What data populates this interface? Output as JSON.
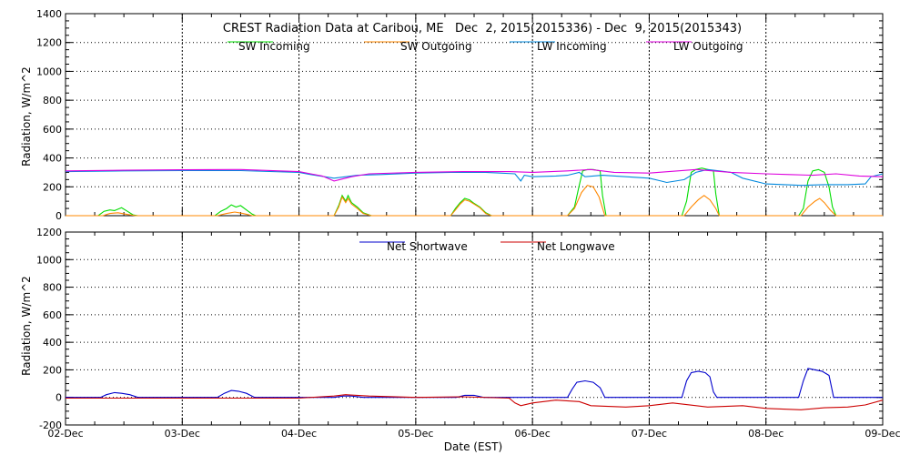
{
  "chart_data": [
    {
      "type": "line",
      "title": "CREST Radiation Data at Caribou, ME   Dec  2, 2015(2015336) - Dec  9, 2015(2015343)",
      "ylabel": "Radiation, W/m^2",
      "xlabel": "",
      "ylim": [
        0,
        1400
      ],
      "yticks": [
        0,
        200,
        400,
        600,
        800,
        1000,
        1200,
        1400
      ],
      "xlim": [
        0,
        7
      ],
      "grid": true,
      "legend": "top",
      "series": [
        {
          "name": "SW Incoming",
          "color": "#00dd00",
          "points": [
            [
              0,
              0
            ],
            [
              0.28,
              0
            ],
            [
              0.33,
              30
            ],
            [
              0.38,
              40
            ],
            [
              0.42,
              35
            ],
            [
              0.48,
              55
            ],
            [
              0.53,
              30
            ],
            [
              0.58,
              5
            ],
            [
              0.62,
              0
            ],
            [
              1.28,
              0
            ],
            [
              1.33,
              30
            ],
            [
              1.38,
              50
            ],
            [
              1.42,
              75
            ],
            [
              1.46,
              60
            ],
            [
              1.5,
              70
            ],
            [
              1.55,
              40
            ],
            [
              1.6,
              10
            ],
            [
              1.63,
              0
            ],
            [
              2.3,
              0
            ],
            [
              2.34,
              70
            ],
            [
              2.37,
              140
            ],
            [
              2.4,
              100
            ],
            [
              2.42,
              140
            ],
            [
              2.45,
              90
            ],
            [
              2.5,
              60
            ],
            [
              2.55,
              20
            ],
            [
              2.62,
              0
            ],
            [
              3.3,
              0
            ],
            [
              3.34,
              50
            ],
            [
              3.38,
              90
            ],
            [
              3.42,
              120
            ],
            [
              3.46,
              110
            ],
            [
              3.5,
              85
            ],
            [
              3.55,
              60
            ],
            [
              3.6,
              20
            ],
            [
              3.65,
              0
            ],
            [
              4.3,
              0
            ],
            [
              4.36,
              60
            ],
            [
              4.4,
              210
            ],
            [
              4.43,
              310
            ],
            [
              4.47,
              320
            ],
            [
              4.52,
              320
            ],
            [
              4.58,
              310
            ],
            [
              4.6,
              140
            ],
            [
              4.63,
              0
            ],
            [
              5.28,
              0
            ],
            [
              5.32,
              100
            ],
            [
              5.36,
              300
            ],
            [
              5.4,
              320
            ],
            [
              5.45,
              330
            ],
            [
              5.5,
              320
            ],
            [
              5.55,
              310
            ],
            [
              5.57,
              150
            ],
            [
              5.6,
              0
            ],
            [
              6.28,
              0
            ],
            [
              6.32,
              50
            ],
            [
              6.36,
              240
            ],
            [
              6.4,
              310
            ],
            [
              6.45,
              320
            ],
            [
              6.5,
              300
            ],
            [
              6.54,
              200
            ],
            [
              6.57,
              60
            ],
            [
              6.6,
              0
            ],
            [
              7,
              0
            ]
          ]
        },
        {
          "name": "SW Outgoing",
          "color": "#ff8800",
          "points": [
            [
              0,
              0
            ],
            [
              0.32,
              0
            ],
            [
              0.38,
              15
            ],
            [
              0.45,
              20
            ],
            [
              0.52,
              10
            ],
            [
              0.6,
              0
            ],
            [
              1.3,
              0
            ],
            [
              1.38,
              15
            ],
            [
              1.45,
              25
            ],
            [
              1.52,
              15
            ],
            [
              1.6,
              0
            ],
            [
              2.3,
              0
            ],
            [
              2.34,
              60
            ],
            [
              2.37,
              130
            ],
            [
              2.4,
              90
            ],
            [
              2.42,
              120
            ],
            [
              2.45,
              80
            ],
            [
              2.5,
              50
            ],
            [
              2.55,
              15
            ],
            [
              2.62,
              0
            ],
            [
              3.3,
              0
            ],
            [
              3.34,
              40
            ],
            [
              3.38,
              80
            ],
            [
              3.42,
              110
            ],
            [
              3.46,
              100
            ],
            [
              3.5,
              80
            ],
            [
              3.55,
              55
            ],
            [
              3.6,
              15
            ],
            [
              3.65,
              0
            ],
            [
              4.3,
              0
            ],
            [
              4.36,
              50
            ],
            [
              4.42,
              160
            ],
            [
              4.47,
              210
            ],
            [
              4.52,
              200
            ],
            [
              4.57,
              130
            ],
            [
              4.62,
              0
            ],
            [
              5.3,
              0
            ],
            [
              5.36,
              60
            ],
            [
              5.42,
              110
            ],
            [
              5.47,
              140
            ],
            [
              5.52,
              110
            ],
            [
              5.57,
              50
            ],
            [
              5.6,
              0
            ],
            [
              6.3,
              0
            ],
            [
              6.36,
              60
            ],
            [
              6.42,
              100
            ],
            [
              6.46,
              120
            ],
            [
              6.5,
              90
            ],
            [
              6.55,
              40
            ],
            [
              6.6,
              0
            ],
            [
              7,
              0
            ]
          ]
        },
        {
          "name": "LW Incoming",
          "color": "#0088dd",
          "points": [
            [
              0,
              305
            ],
            [
              0.5,
              310
            ],
            [
              1,
              312
            ],
            [
              1.5,
              312
            ],
            [
              2,
              300
            ],
            [
              2.1,
              285
            ],
            [
              2.3,
              260
            ],
            [
              2.5,
              280
            ],
            [
              2.7,
              285
            ],
            [
              3,
              295
            ],
            [
              3.3,
              300
            ],
            [
              3.6,
              300
            ],
            [
              3.85,
              290
            ],
            [
              3.9,
              240
            ],
            [
              3.93,
              280
            ],
            [
              4.0,
              270
            ],
            [
              4.2,
              275
            ],
            [
              4.3,
              280
            ],
            [
              4.4,
              300
            ],
            [
              4.45,
              270
            ],
            [
              4.6,
              280
            ],
            [
              4.8,
              270
            ],
            [
              5.0,
              260
            ],
            [
              5.1,
              240
            ],
            [
              5.15,
              230
            ],
            [
              5.3,
              250
            ],
            [
              5.4,
              300
            ],
            [
              5.5,
              320
            ],
            [
              5.6,
              310
            ],
            [
              5.7,
              300
            ],
            [
              5.8,
              260
            ],
            [
              6.0,
              220
            ],
            [
              6.3,
              210
            ],
            [
              6.5,
              215
            ],
            [
              6.7,
              215
            ],
            [
              6.85,
              220
            ],
            [
              6.9,
              270
            ],
            [
              6.95,
              280
            ],
            [
              7,
              290
            ]
          ]
        },
        {
          "name": "LW Outgoing",
          "color": "#dd00dd",
          "points": [
            [
              0,
              310
            ],
            [
              0.5,
              315
            ],
            [
              1,
              318
            ],
            [
              1.5,
              320
            ],
            [
              2,
              305
            ],
            [
              2.1,
              290
            ],
            [
              2.2,
              275
            ],
            [
              2.3,
              240
            ],
            [
              2.45,
              270
            ],
            [
              2.6,
              290
            ],
            [
              3,
              300
            ],
            [
              3.4,
              305
            ],
            [
              3.8,
              305
            ],
            [
              4.0,
              300
            ],
            [
              4.3,
              310
            ],
            [
              4.5,
              320
            ],
            [
              4.7,
              300
            ],
            [
              5.0,
              295
            ],
            [
              5.4,
              320
            ],
            [
              5.7,
              300
            ],
            [
              6.0,
              290
            ],
            [
              6.2,
              285
            ],
            [
              6.4,
              280
            ],
            [
              6.6,
              290
            ],
            [
              6.8,
              275
            ],
            [
              7,
              270
            ]
          ]
        }
      ]
    },
    {
      "type": "line",
      "ylabel": "Radiation, W/m^2",
      "xlabel": "Date (EST)",
      "ylim": [
        -200,
        1200
      ],
      "yticks": [
        -200,
        0,
        200,
        400,
        600,
        800,
        1000,
        1200
      ],
      "xlim": [
        0,
        7
      ],
      "xticks": [
        "02-Dec",
        "03-Dec",
        "04-Dec",
        "05-Dec",
        "06-Dec",
        "07-Dec",
        "08-Dec",
        "09-Dec"
      ],
      "grid": true,
      "legend": "top",
      "series": [
        {
          "name": "Net Shortwave",
          "color": "#0000cc",
          "points": [
            [
              0,
              0
            ],
            [
              0.3,
              0
            ],
            [
              0.35,
              20
            ],
            [
              0.42,
              35
            ],
            [
              0.48,
              30
            ],
            [
              0.55,
              20
            ],
            [
              0.62,
              0
            ],
            [
              1.3,
              0
            ],
            [
              1.36,
              30
            ],
            [
              1.42,
              50
            ],
            [
              1.48,
              45
            ],
            [
              1.55,
              30
            ],
            [
              1.62,
              0
            ],
            [
              2.3,
              0
            ],
            [
              2.38,
              10
            ],
            [
              2.45,
              10
            ],
            [
              2.55,
              0
            ],
            [
              3.35,
              0
            ],
            [
              3.42,
              15
            ],
            [
              3.5,
              15
            ],
            [
              3.58,
              0
            ],
            [
              4.3,
              0
            ],
            [
              4.34,
              60
            ],
            [
              4.38,
              110
            ],
            [
              4.45,
              120
            ],
            [
              4.52,
              110
            ],
            [
              4.58,
              70
            ],
            [
              4.62,
              0
            ],
            [
              5.28,
              0
            ],
            [
              5.32,
              120
            ],
            [
              5.36,
              180
            ],
            [
              5.42,
              190
            ],
            [
              5.48,
              180
            ],
            [
              5.52,
              150
            ],
            [
              5.55,
              40
            ],
            [
              5.58,
              0
            ],
            [
              6.28,
              0
            ],
            [
              6.32,
              120
            ],
            [
              6.36,
              210
            ],
            [
              6.42,
              200
            ],
            [
              6.48,
              190
            ],
            [
              6.54,
              160
            ],
            [
              6.58,
              0
            ],
            [
              7,
              0
            ]
          ]
        },
        {
          "name": "Net Longwave",
          "color": "#cc0000",
          "points": [
            [
              0,
              -5
            ],
            [
              1,
              -5
            ],
            [
              2,
              -5
            ],
            [
              2.3,
              10
            ],
            [
              2.4,
              20
            ],
            [
              2.6,
              10
            ],
            [
              3,
              0
            ],
            [
              3.4,
              5
            ],
            [
              3.8,
              -5
            ],
            [
              3.85,
              -40
            ],
            [
              3.9,
              -60
            ],
            [
              4.0,
              -40
            ],
            [
              4.2,
              -20
            ],
            [
              4.4,
              -30
            ],
            [
              4.5,
              -60
            ],
            [
              4.8,
              -70
            ],
            [
              5.0,
              -60
            ],
            [
              5.2,
              -40
            ],
            [
              5.5,
              -70
            ],
            [
              5.8,
              -60
            ],
            [
              6.0,
              -80
            ],
            [
              6.3,
              -90
            ],
            [
              6.5,
              -75
            ],
            [
              6.7,
              -70
            ],
            [
              6.85,
              -55
            ],
            [
              7,
              -20
            ]
          ]
        }
      ]
    }
  ]
}
